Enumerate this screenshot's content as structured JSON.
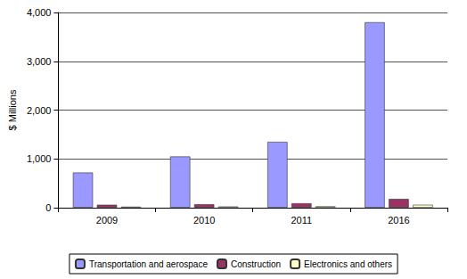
{
  "chart_data": {
    "type": "bar",
    "y_label": "$ Millions",
    "categories": [
      "2009",
      "2010",
      "2011",
      "2016"
    ],
    "series": [
      {
        "name": "Transportation and aerospace",
        "color": "#9999ff",
        "values": [
          720,
          1050,
          1350,
          3800
        ]
      },
      {
        "name": "Construction",
        "color": "#993366",
        "values": [
          60,
          70,
          90,
          180
        ]
      },
      {
        "name": "Electronics and others",
        "color": "#ffffcc",
        "values": [
          20,
          25,
          30,
          60
        ]
      }
    ],
    "ylim": [
      0,
      4000
    ],
    "yticks": [
      0,
      {
        "value": 1000,
        "label": "1,000"
      },
      {
        "value": 2000,
        "label": "2,000"
      },
      {
        "value": 3000,
        "label": "3,000"
      },
      {
        "value": 4000,
        "label": "4,000"
      }
    ],
    "grid": true,
    "legend": "bottom"
  }
}
